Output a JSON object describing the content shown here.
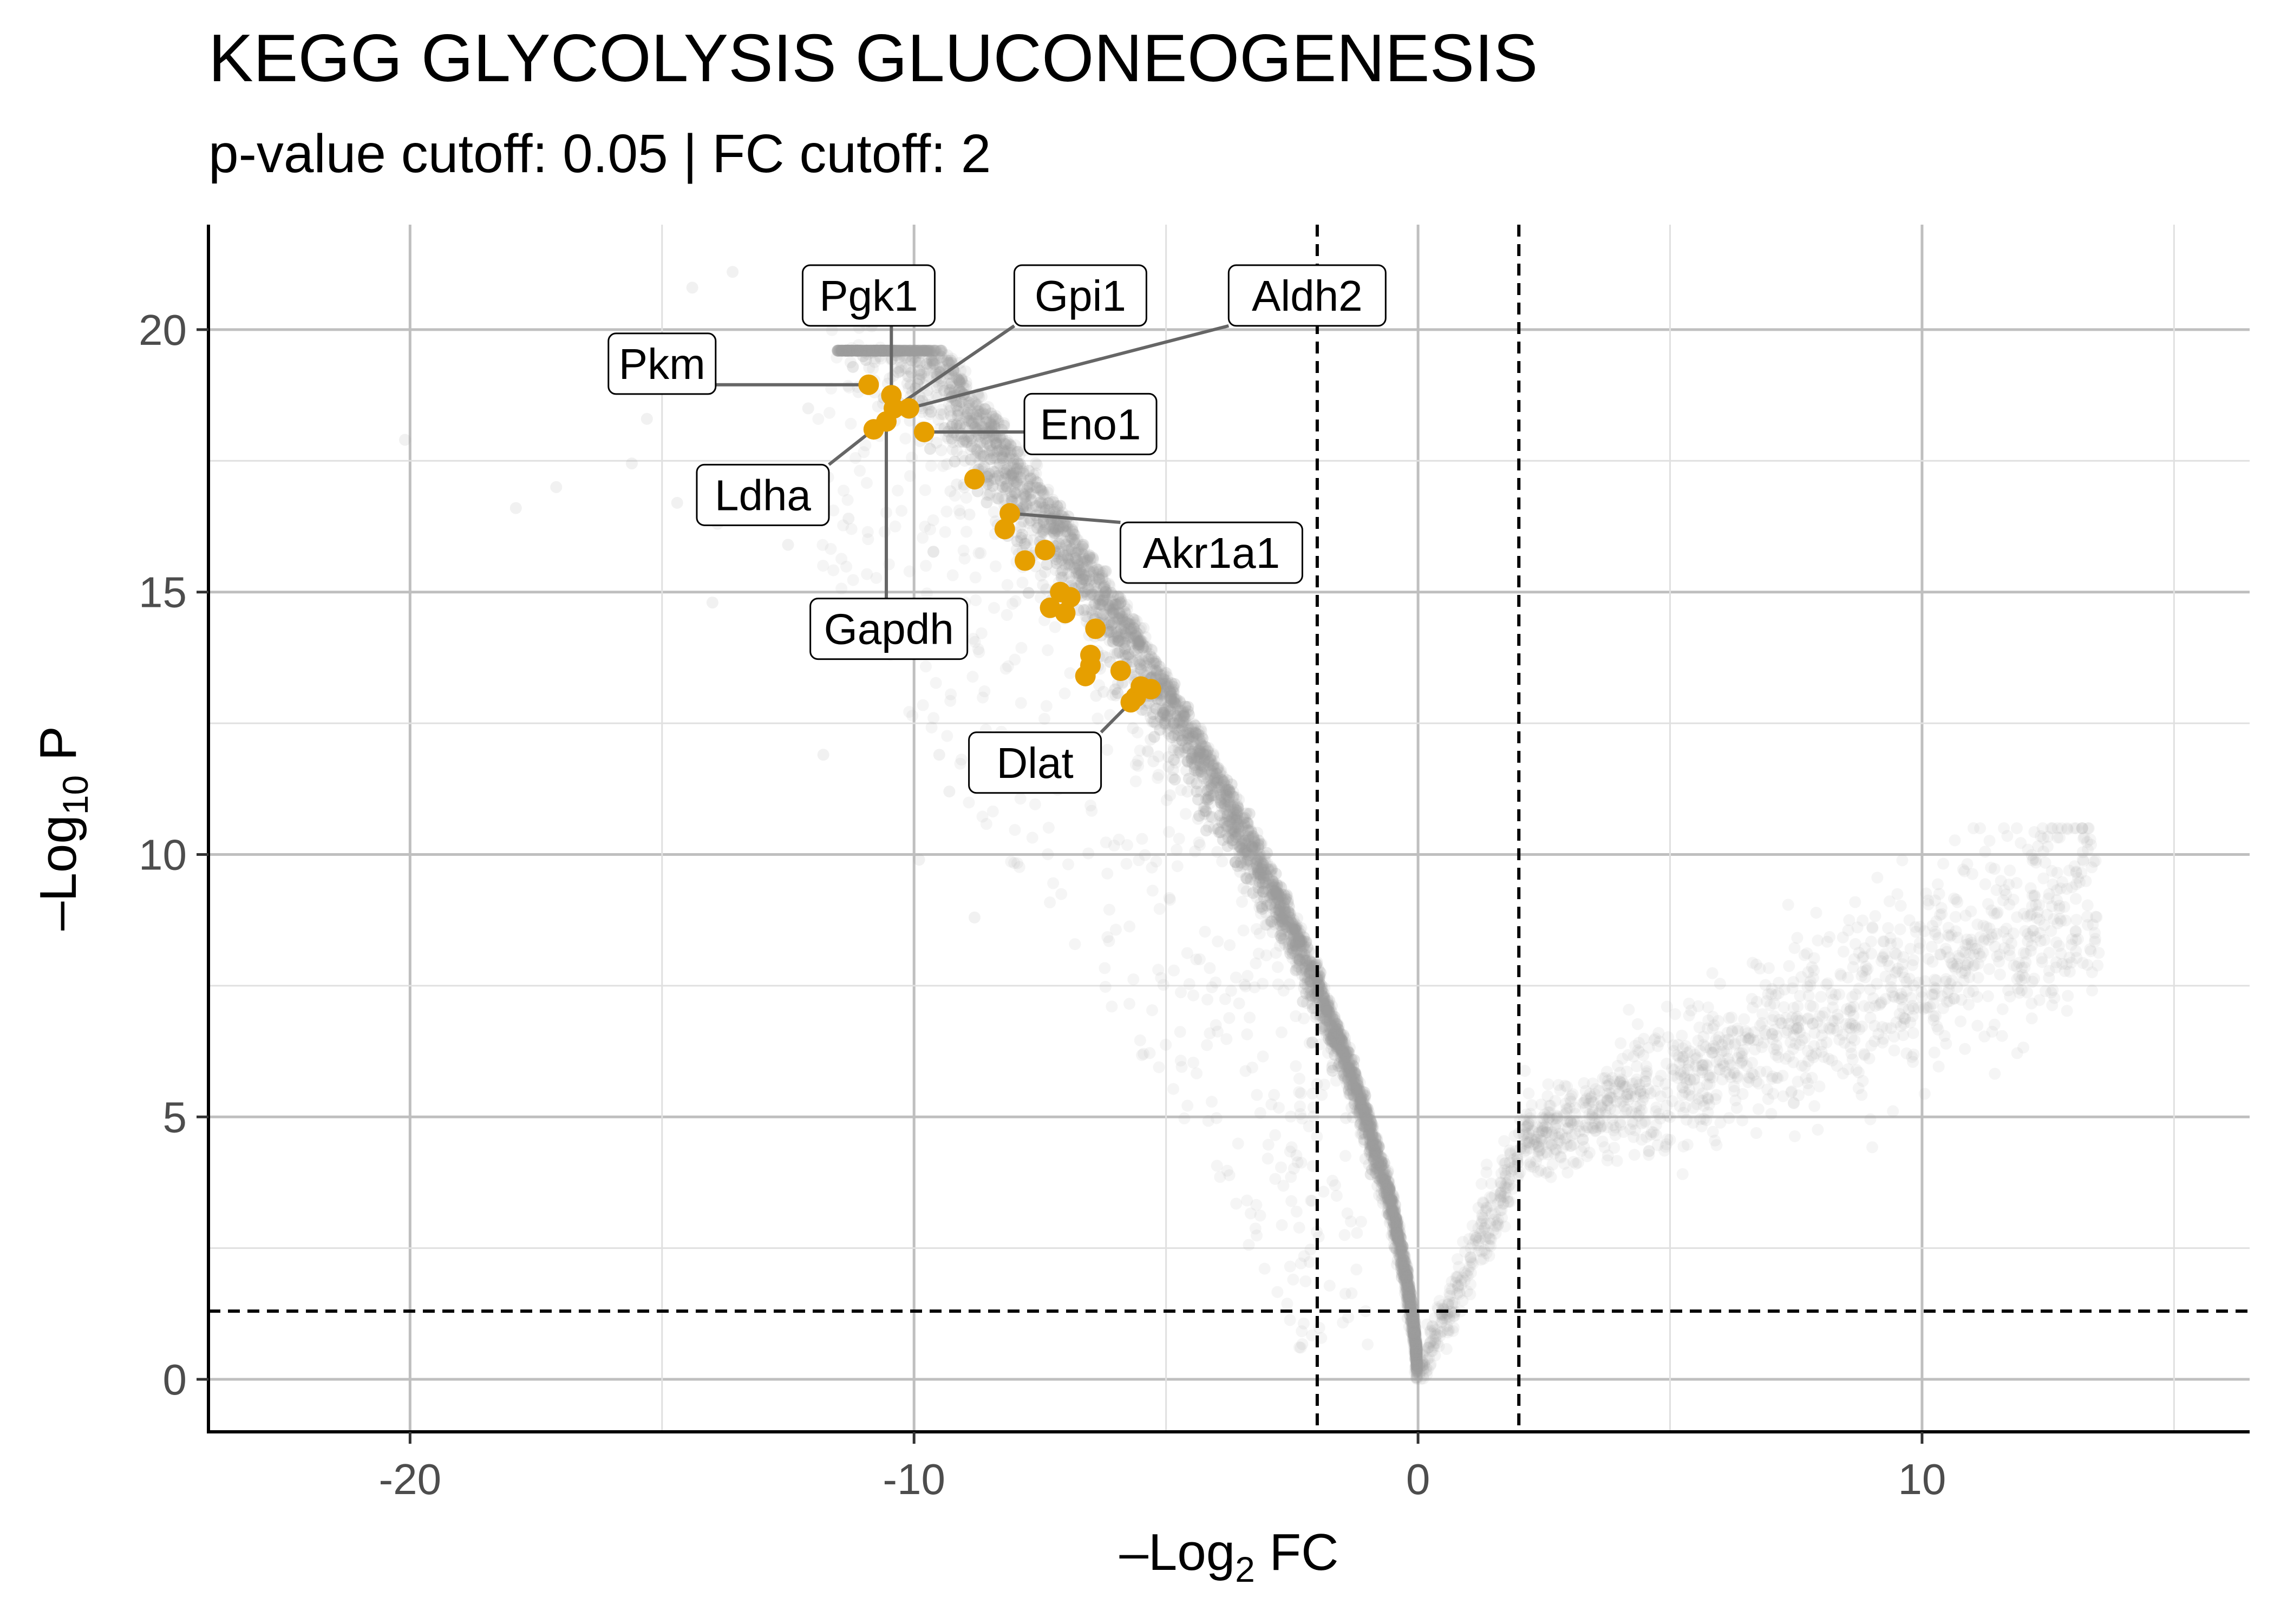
{
  "chart_data": {
    "type": "scatter",
    "title": "KEGG GLYCOLYSIS GLUCONEOGENESIS",
    "subtitle": "p-value cutoff: 0.05 | FC cutoff: 2",
    "xlabel": {
      "prefix": "–Log",
      "sub": "2",
      "suffix": " FC"
    },
    "ylabel": {
      "prefix": "–Log",
      "sub": "10",
      "suffix": " P"
    },
    "xlim": [
      -24,
      16.5
    ],
    "ylim": [
      -1,
      22
    ],
    "x_ticks": [
      -20,
      -10,
      0,
      10
    ],
    "x_tick_labels": [
      "-20",
      "-10",
      "0",
      "10"
    ],
    "y_ticks": [
      0,
      5,
      10,
      15,
      20
    ],
    "y_tick_labels": [
      "0",
      "5",
      "10",
      "15",
      "20"
    ],
    "grid": true,
    "cutoffs": {
      "fc_lines": [
        -2,
        2
      ],
      "p_line": 1.3
    },
    "colors": {
      "background_points": "#999999",
      "highlight": "#E69F00",
      "grid": "#bfbfbf",
      "connector": "#666666"
    },
    "background_points_note_free": true,
    "highlighted_genes": [
      {
        "name": "Pkm",
        "x": -10.9,
        "y": 18.95
      },
      {
        "name": "Pgk1",
        "x": -10.45,
        "y": 18.75
      },
      {
        "name": "Gpi1",
        "x": -10.4,
        "y": 18.5
      },
      {
        "name": "Aldh2",
        "x": -10.1,
        "y": 18.5
      },
      {
        "name": "Ldha",
        "x": -10.8,
        "y": 18.1
      },
      {
        "name": "Gapdh",
        "x": -10.55,
        "y": 18.25
      },
      {
        "name": "Eno1",
        "x": -9.8,
        "y": 18.05
      },
      {
        "name": "Akr1a1",
        "x": -8.1,
        "y": 16.5
      },
      {
        "name": "Dlat",
        "x": -5.7,
        "y": 12.9
      }
    ],
    "unlabeled_highlights": [
      {
        "x": -8.8,
        "y": 17.15
      },
      {
        "x": -8.2,
        "y": 16.2
      },
      {
        "x": -7.8,
        "y": 15.6
      },
      {
        "x": -7.4,
        "y": 15.8
      },
      {
        "x": -7.3,
        "y": 14.7
      },
      {
        "x": -7.1,
        "y": 15.0
      },
      {
        "x": -6.9,
        "y": 14.9
      },
      {
        "x": -7.0,
        "y": 14.6
      },
      {
        "x": -6.6,
        "y": 13.4
      },
      {
        "x": -6.5,
        "y": 13.6
      },
      {
        "x": -6.4,
        "y": 14.3
      },
      {
        "x": -6.5,
        "y": 13.8
      },
      {
        "x": -5.9,
        "y": 13.5
      },
      {
        "x": -5.5,
        "y": 13.2
      },
      {
        "x": -5.3,
        "y": 13.15
      },
      {
        "x": -5.6,
        "y": 13.0
      }
    ],
    "label_anchors": [
      {
        "name": "Pkm",
        "lx": -15.0,
        "ly": 19.35
      },
      {
        "name": "Pgk1",
        "lx": -10.9,
        "ly": 20.65
      },
      {
        "name": "Gpi1",
        "lx": -6.7,
        "ly": 20.65
      },
      {
        "name": "Aldh2",
        "lx": -2.2,
        "ly": 20.65
      },
      {
        "name": "Eno1",
        "lx": -6.5,
        "ly": 18.2
      },
      {
        "name": "Ldha",
        "lx": -13.0,
        "ly": 16.85
      },
      {
        "name": "Akr1a1",
        "lx": -4.1,
        "ly": 15.75
      },
      {
        "name": "Gapdh",
        "lx": -10.5,
        "ly": 14.3
      },
      {
        "name": "Dlat",
        "lx": -7.6,
        "ly": 11.75
      }
    ]
  }
}
